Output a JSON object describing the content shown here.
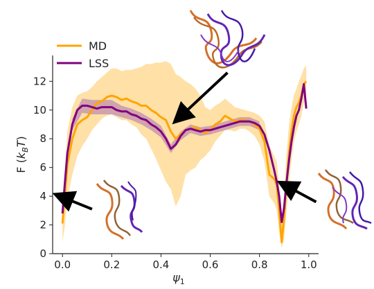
{
  "chart_data": {
    "type": "line",
    "title": "",
    "xlabel": "ψ",
    "xlabel_sub": "1",
    "ylabel_prefix": "F (",
    "ylabel_k": "k",
    "ylabel_sub": "B",
    "ylabel_T": "T",
    "ylabel_suffix": ")",
    "xlim": [
      -0.04,
      1.04
    ],
    "ylim": [
      0,
      13.8
    ],
    "xticks": [
      0.0,
      0.2,
      0.4,
      0.6,
      0.8,
      1.0
    ],
    "xtick_labels": [
      "0.0",
      "0.2",
      "0.4",
      "0.6",
      "0.8",
      "1.0"
    ],
    "yticks": [
      0,
      2,
      4,
      6,
      8,
      10,
      12
    ],
    "ytick_labels": [
      "0",
      "2",
      "4",
      "6",
      "8",
      "10",
      "12"
    ],
    "grid": false,
    "legend_position": "top-left",
    "series": [
      {
        "name": "MD",
        "color": "#FFA500",
        "x": [
          0.0,
          0.01,
          0.02,
          0.04,
          0.06,
          0.08,
          0.1,
          0.12,
          0.14,
          0.16,
          0.18,
          0.2,
          0.22,
          0.24,
          0.26,
          0.28,
          0.3,
          0.32,
          0.34,
          0.36,
          0.38,
          0.4,
          0.42,
          0.44,
          0.46,
          0.48,
          0.5,
          0.52,
          0.54,
          0.56,
          0.58,
          0.6,
          0.62,
          0.64,
          0.66,
          0.68,
          0.7,
          0.72,
          0.74,
          0.76,
          0.78,
          0.8,
          0.82,
          0.84,
          0.86,
          0.87,
          0.88,
          0.89,
          0.9,
          0.91,
          0.92,
          0.93,
          0.94,
          0.95,
          0.96,
          0.97,
          0.98,
          0.99
        ],
        "y": [
          2.1,
          4.2,
          6.2,
          8.0,
          9.0,
          9.3,
          9.5,
          10.0,
          10.5,
          10.6,
          10.9,
          11.0,
          10.9,
          10.7,
          10.8,
          10.6,
          10.5,
          10.3,
          10.3,
          10.0,
          9.8,
          9.5,
          9.3,
          8.5,
          8.0,
          8.3,
          8.6,
          8.7,
          8.8,
          8.6,
          8.4,
          8.6,
          9.0,
          9.2,
          9.6,
          9.4,
          9.2,
          9.3,
          9.3,
          9.2,
          9.0,
          8.7,
          7.8,
          5.5,
          5.2,
          4.8,
          3.0,
          0.8,
          2.5,
          5.0,
          7.0,
          8.5,
          9.6,
          10.2,
          10.5,
          11.0,
          11.8,
          12.0
        ]
      },
      {
        "name": "LSS",
        "color": "#800080",
        "x": [
          0.0,
          0.01,
          0.02,
          0.04,
          0.06,
          0.08,
          0.1,
          0.12,
          0.14,
          0.16,
          0.18,
          0.2,
          0.22,
          0.24,
          0.26,
          0.28,
          0.3,
          0.32,
          0.34,
          0.36,
          0.38,
          0.4,
          0.42,
          0.44,
          0.46,
          0.48,
          0.5,
          0.52,
          0.54,
          0.56,
          0.58,
          0.6,
          0.62,
          0.64,
          0.66,
          0.68,
          0.7,
          0.72,
          0.74,
          0.76,
          0.78,
          0.8,
          0.82,
          0.84,
          0.86,
          0.87,
          0.88,
          0.89,
          0.9,
          0.91,
          0.92,
          0.93,
          0.94,
          0.95,
          0.96,
          0.97,
          0.98,
          0.99
        ],
        "y": [
          2.8,
          5.0,
          7.0,
          9.0,
          10.0,
          10.3,
          10.3,
          10.2,
          10.1,
          10.2,
          10.2,
          10.2,
          10.0,
          9.9,
          9.9,
          9.7,
          9.6,
          9.4,
          9.3,
          9.0,
          8.8,
          8.5,
          8.0,
          7.3,
          7.6,
          8.2,
          8.6,
          8.7,
          8.6,
          8.5,
          8.6,
          8.6,
          8.7,
          8.8,
          8.9,
          9.0,
          9.1,
          9.2,
          9.2,
          9.2,
          9.1,
          8.9,
          8.3,
          7.2,
          5.8,
          5.0,
          4.0,
          2.2,
          3.2,
          5.0,
          6.5,
          7.8,
          8.8,
          9.6,
          10.0,
          10.8,
          11.8,
          10.1
        ]
      }
    ],
    "md_band": {
      "color": "#FFC75F",
      "x": [
        0.0,
        0.01,
        0.02,
        0.04,
        0.06,
        0.08,
        0.1,
        0.12,
        0.14,
        0.16,
        0.18,
        0.2,
        0.22,
        0.24,
        0.26,
        0.28,
        0.3,
        0.32,
        0.34,
        0.36,
        0.38,
        0.4,
        0.42,
        0.44,
        0.46,
        0.48,
        0.5,
        0.52,
        0.54,
        0.56,
        0.58,
        0.6,
        0.62,
        0.64,
        0.66,
        0.68,
        0.7,
        0.72,
        0.74,
        0.76,
        0.78,
        0.8,
        0.82,
        0.84,
        0.86,
        0.87,
        0.88,
        0.89,
        0.9,
        0.91,
        0.92,
        0.93,
        0.94,
        0.95,
        0.96,
        0.97,
        0.98,
        0.99
      ],
      "lower": [
        0.8,
        2.0,
        3.8,
        5.5,
        6.8,
        7.5,
        8.0,
        8.6,
        9.0,
        9.4,
        9.6,
        9.7,
        9.5,
        9.3,
        9.3,
        9.0,
        8.8,
        8.3,
        8.0,
        7.3,
        6.6,
        5.8,
        5.0,
        4.5,
        3.3,
        4.0,
        5.5,
        5.8,
        6.0,
        6.5,
        6.8,
        7.2,
        7.8,
        8.2,
        8.6,
        8.6,
        8.5,
        8.7,
        8.7,
        8.5,
        8.2,
        7.6,
        6.4,
        4.0,
        3.5,
        3.0,
        1.5,
        0.4,
        1.0,
        3.0,
        5.0,
        6.5,
        7.8,
        8.5,
        9.0,
        9.6,
        10.5,
        10.8
      ],
      "upper": [
        3.5,
        6.0,
        8.5,
        10.2,
        11.0,
        11.2,
        11.3,
        11.6,
        12.0,
        12.3,
        12.6,
        12.9,
        12.9,
        12.7,
        12.8,
        12.8,
        12.9,
        13.0,
        13.2,
        13.2,
        13.3,
        13.3,
        13.4,
        13.2,
        12.5,
        12.3,
        12.0,
        11.8,
        11.5,
        11.0,
        10.2,
        10.0,
        10.3,
        10.5,
        10.8,
        10.5,
        10.2,
        10.1,
        10.0,
        9.9,
        9.8,
        9.6,
        9.2,
        7.5,
        6.8,
        6.4,
        4.8,
        2.0,
        4.2,
        7.0,
        9.0,
        10.2,
        11.0,
        11.5,
        12.0,
        12.4,
        12.9,
        13.1
      ]
    },
    "lss_band": {
      "color": "#B07AB0",
      "x": [
        0.04,
        0.08,
        0.12,
        0.16,
        0.2,
        0.24,
        0.28,
        0.32,
        0.36,
        0.4,
        0.44,
        0.48,
        0.52,
        0.56,
        0.6,
        0.64,
        0.68,
        0.72,
        0.76,
        0.8
      ],
      "lower": [
        8.6,
        9.8,
        9.7,
        9.7,
        9.7,
        9.5,
        9.3,
        9.0,
        8.6,
        8.1,
        7.0,
        7.9,
        8.4,
        8.2,
        8.3,
        8.5,
        8.7,
        8.9,
        8.9,
        8.6
      ],
      "upper": [
        9.4,
        10.8,
        10.7,
        10.7,
        10.7,
        10.3,
        10.1,
        9.8,
        9.4,
        8.9,
        7.6,
        8.5,
        9.0,
        8.8,
        8.9,
        9.1,
        9.3,
        9.5,
        9.5,
        9.2
      ]
    },
    "annotations": [
      {
        "type": "arrow",
        "from": {
          "x": 0.12,
          "y": 3.1
        },
        "to": {
          "x": -0.01,
          "y": 4.0
        }
      },
      {
        "type": "arrow",
        "from": {
          "x": 0.67,
          "y": 12.6
        },
        "to": {
          "x": 0.47,
          "y": 9.4
        }
      },
      {
        "type": "arrow",
        "from": {
          "x": 1.03,
          "y": 3.6
        },
        "to": {
          "x": 0.9,
          "y": 4.8
        }
      }
    ]
  }
}
